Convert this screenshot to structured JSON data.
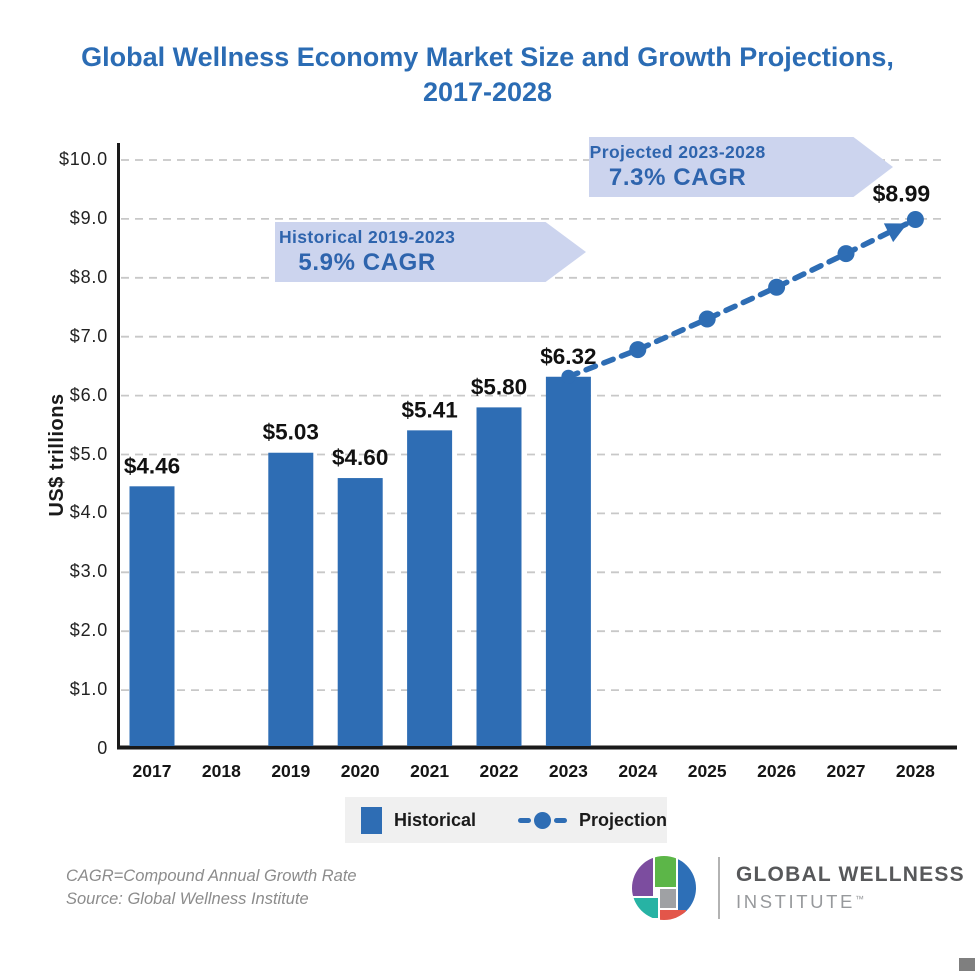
{
  "title": {
    "line1": "Global Wellness Economy Market Size and Growth Projections,",
    "line2": "2017-2028"
  },
  "colors": {
    "title_blue": "#2b6cb4",
    "bar_blue": "#2E6DB4",
    "banner_bg": "#ccd4ee",
    "banner_text": "#2e64ad",
    "gridline": "#c8c8c8",
    "axis": "#1a1a1a",
    "legend_bg": "#f0f0f0",
    "footnote_gray": "#8c8c8c"
  },
  "chart_data": {
    "type": "bar+line",
    "title": "Global Wellness Economy Market Size and Growth Projections, 2017-2028",
    "ylabel": "US$ trillions",
    "xlabel": "",
    "ylim": [
      0,
      10.4
    ],
    "grid": "horizontal-dashed",
    "legend_position": "bottom",
    "categories": [
      "2017",
      "2018",
      "2019",
      "2020",
      "2021",
      "2022",
      "2023",
      "2024",
      "2025",
      "2026",
      "2027",
      "2028"
    ],
    "yticks": [
      {
        "value": 10,
        "label": "$10.0"
      },
      {
        "value": 9,
        "label": "$9.0"
      },
      {
        "value": 8,
        "label": "$8.0"
      },
      {
        "value": 7,
        "label": "$7.0"
      },
      {
        "value": 6,
        "label": "$6.0"
      },
      {
        "value": 5,
        "label": "$5.0"
      },
      {
        "value": 4,
        "label": "$4.0"
      },
      {
        "value": 3,
        "label": "$3.0"
      },
      {
        "value": 2,
        "label": "$2.0"
      },
      {
        "value": 1,
        "label": "$1.0"
      },
      {
        "value": 0,
        "label": "0"
      }
    ],
    "series": [
      {
        "name": "Historical",
        "type": "bar",
        "color": "#2E6DB4",
        "values": [
          4.46,
          null,
          5.03,
          4.6,
          5.41,
          5.8,
          6.32,
          null,
          null,
          null,
          null,
          null
        ],
        "labels": [
          "$4.46",
          null,
          "$5.03",
          "$4.60",
          "$5.41",
          "$5.80",
          "$6.32",
          null,
          null,
          null,
          null,
          null
        ]
      },
      {
        "name": "Projection",
        "type": "dashed-line-with-dots",
        "color": "#2E6DB4",
        "values": [
          null,
          null,
          null,
          null,
          null,
          null,
          6.32,
          6.78,
          7.3,
          7.84,
          8.41,
          8.99
        ],
        "labels": [
          null,
          null,
          null,
          null,
          null,
          null,
          null,
          null,
          null,
          null,
          null,
          "$8.99"
        ],
        "end_arrow": true
      }
    ]
  },
  "annotations": {
    "historical": {
      "line1": "Historical 2019-2023",
      "line2": "5.9% CAGR"
    },
    "projected": {
      "line1": "Projected 2023-2028",
      "line2": "7.3% CAGR"
    }
  },
  "legend": {
    "items": [
      {
        "label": "Historical",
        "symbol": "blue-square"
      },
      {
        "label": "Projection",
        "symbol": "dashed-line-with-dot"
      }
    ]
  },
  "footer": {
    "note1": "CAGR=Compound Annual Growth Rate",
    "note2": "Source: Global Wellness Institute",
    "logo_line1": "GLOBAL WELLNESS",
    "logo_line2": "INSTITUTE",
    "logo_tm": "™"
  }
}
